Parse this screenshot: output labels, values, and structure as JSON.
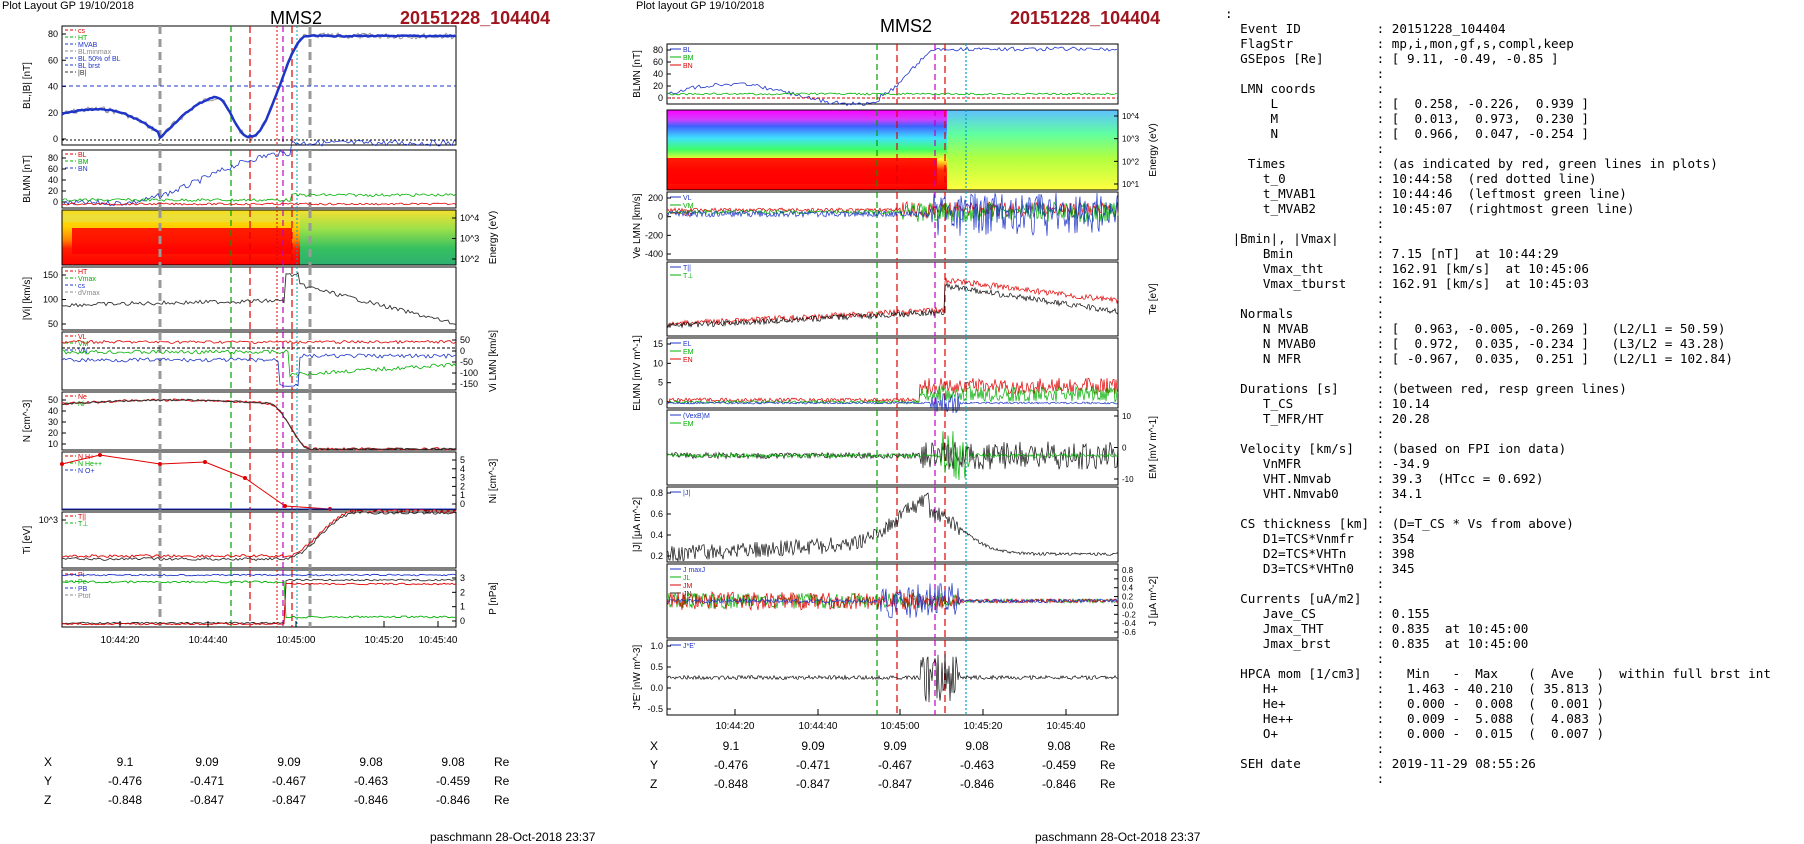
{
  "colors": {
    "event_id": "#a0141e",
    "bl": "#1f35c8",
    "red": "#e00000",
    "green": "#00b000",
    "magenta": "#c000c0",
    "cyan": "#00a0c0",
    "gray": "#888888"
  },
  "left": {
    "header": "Plot Layout GP 19/10/2018",
    "title": "MMS2",
    "event_id": "20151228_104404",
    "footer": "paschmann 28-Oct-2018 23:37",
    "time_ticks": [
      "10:44:20",
      "10:44:40",
      "10:45:00",
      "10:45:20",
      "10:45:40"
    ],
    "ephem": {
      "rows": [
        {
          "label": "X",
          "values": [
            "9.1",
            "9.09",
            "9.09",
            "9.08",
            "9.08"
          ],
          "unit": "Re"
        },
        {
          "label": "Y",
          "values": [
            "-0.476",
            "-0.471",
            "-0.467",
            "-0.463",
            "-0.459"
          ],
          "unit": "Re"
        },
        {
          "label": "Z",
          "values": [
            "-0.848",
            "-0.847",
            "-0.847",
            "-0.846",
            "-0.846"
          ],
          "unit": "Re"
        }
      ]
    },
    "panels": [
      {
        "ylabel": "BL,|B| [nT]",
        "ticks": [
          "80",
          "60",
          "40",
          "20",
          "0"
        ],
        "legend": [
          "cs",
          "HT",
          "MVAB",
          "BLminmax",
          "BL 50% of BL",
          "BL brst",
          "|B|"
        ]
      },
      {
        "ylabel": "BLMN [nT]",
        "ticks": [
          "80",
          "60",
          "40",
          "20",
          "0"
        ],
        "legend": [
          "BL",
          "BM",
          "BN"
        ]
      },
      {
        "ylabel": "Energy (eV)",
        "right_ticks": [
          "10^4",
          "10^3",
          "10^2"
        ]
      },
      {
        "ylabel": "|Vi| [km/s]",
        "ticks": [
          "150",
          "100",
          "50"
        ],
        "legend": [
          "HT",
          "Vmax",
          "cs",
          "dVmax"
        ]
      },
      {
        "ylabel": "Vi LMN [km/s]",
        "right_ticks": [
          "50",
          "0",
          "-50",
          "-100",
          "-150"
        ],
        "legend": [
          "VL",
          "VM",
          "VN"
        ]
      },
      {
        "ylabel": "N [cm^-3]",
        "ticks": [
          "50",
          "40",
          "30",
          "20",
          "10"
        ],
        "legend": [
          "Ne",
          "Ni"
        ]
      },
      {
        "ylabel": "Ni [cm^-3]",
        "right_ticks": [
          "5",
          "4",
          "3",
          "2",
          "1",
          "0"
        ],
        "legend": [
          "N H+",
          "N He++",
          "N O+"
        ]
      },
      {
        "ylabel": "Ti [eV]",
        "ticks": [
          "10^3"
        ],
        "legend": [
          "T||",
          "T⊥"
        ]
      },
      {
        "ylabel": "P [nPa]",
        "right_ticks": [
          "3",
          "2",
          "1",
          "0"
        ],
        "legend": [
          "Pi",
          "Pe",
          "PB",
          "Ptot"
        ]
      }
    ]
  },
  "right": {
    "header": "Plot layout GP 19/10/2018",
    "title": "MMS2",
    "event_id": "20151228_104404",
    "footer": "paschmann 28-Oct-2018 23:37",
    "time_ticks": [
      "10:44:20",
      "10:44:40",
      "10:45:00",
      "10:45:20",
      "10:45:40"
    ],
    "ephem": {
      "rows": [
        {
          "label": "X",
          "values": [
            "9.1",
            "9.09",
            "9.09",
            "9.08",
            "9.08"
          ],
          "unit": "Re"
        },
        {
          "label": "Y",
          "values": [
            "-0.476",
            "-0.471",
            "-0.467",
            "-0.463",
            "-0.459"
          ],
          "unit": "Re"
        },
        {
          "label": "Z",
          "values": [
            "-0.848",
            "-0.847",
            "-0.847",
            "-0.846",
            "-0.846"
          ],
          "unit": "Re"
        }
      ]
    },
    "panels": [
      {
        "ylabel": "BLMN [nT]",
        "ticks": [
          "80",
          "60",
          "40",
          "20",
          "0"
        ],
        "legend": [
          "BL",
          "BM",
          "BN"
        ]
      },
      {
        "ylabel": "Energy (eV)",
        "right_ticks": [
          "10^4",
          "10^3",
          "10^2",
          "10^1"
        ]
      },
      {
        "ylabel": "Ve LMN [km/s]",
        "ticks": [
          "200",
          "0",
          "-200",
          "-400"
        ],
        "legend": [
          "VL",
          "VM",
          "VN"
        ]
      },
      {
        "ylabel": "Te [eV]",
        "legend": [
          "T||",
          "T⊥"
        ]
      },
      {
        "ylabel": "ELMN [mV m^-1]",
        "ticks": [
          "15",
          "10",
          "5",
          "0"
        ],
        "legend": [
          "EL",
          "EM",
          "EN"
        ]
      },
      {
        "ylabel": "EM [mV m^-1]",
        "right_ticks": [
          "10",
          "0",
          "-10"
        ],
        "legend": [
          "(VexB)M",
          "EM"
        ]
      },
      {
        "ylabel": "|J| [μA m^-2]",
        "ticks": [
          "0.8",
          "0.6",
          "0.4",
          "0.2"
        ],
        "legend": [
          "|J|"
        ]
      },
      {
        "ylabel": "J [μA m^-2]",
        "right_ticks": [
          "0.8",
          "0.6",
          "0.4",
          "0.2",
          "0.0",
          "-0.2",
          "-0.4",
          "-0.6"
        ],
        "legend": [
          "J maxJ",
          "JL",
          "JM",
          "JN"
        ]
      },
      {
        "ylabel": "J*E' [nW m^-3]",
        "ticks": [
          "1.0",
          "0.5",
          "0.0",
          "-0.5"
        ],
        "legend": [
          "J*E'"
        ]
      }
    ]
  },
  "info_lines": [
    ":",
    "  Event ID          : 20151228_104404",
    "  FlagStr           : mp,i,mon,gf,s,compl,keep",
    "  GSEpos [Re]       : [ 9.11, -0.49, -0.85 ]",
    "                    :",
    "  LMN coords        :",
    "      L             : [  0.258, -0.226,  0.939 ]",
    "      M             : [  0.013,  0.973,  0.230 ]",
    "      N             : [  0.966,  0.047, -0.254 ]",
    "                    :",
    "   Times            : (as indicated by red, green lines in plots)",
    "     t_0            : 10:44:58  (red dotted line)",
    "     t_MVAB1        : 10:44:46  (leftmost green line)",
    "     t_MVAB2        : 10:45:07  (rightmost green line)",
    "                    :",
    " |Bmin|, |Vmax|     :",
    "     Bmin           : 7.15 [nT]  at 10:44:29",
    "     Vmax_tht       : 162.91 [km/s]  at 10:45:06",
    "     Vmax_tburst    : 162.91 [km/s]  at 10:45:03",
    "                    :",
    "  Normals           :",
    "     N MVAB         : [  0.963, -0.005, -0.269 ]   (L2/L1 = 50.59)",
    "     N MVAB0        : [  0.972,  0.035, -0.234 ]   (L3/L2 = 43.28)",
    "     N MFR          : [ -0.967,  0.035,  0.251 ]   (L2/L1 = 102.84)",
    "                    :",
    "  Durations [s]     : (between red, resp green lines)",
    "     T_CS           : 10.14",
    "     T_MFR/HT       : 20.28",
    "                    :",
    "  Velocity [km/s]   : (based on FPI ion data)",
    "     VnMFR          : -34.9",
    "     VHT.Nmvab      : 39.3  (HTcc = 0.692)",
    "     VHT.Nmvab0     : 34.1",
    "                    :",
    "  CS thickness [km] : (D=T_CS * Vs from above)",
    "     D1=TCS*Vnmfr   : 354",
    "     D2=TCS*VHTn    : 398",
    "     D3=TCS*VHTn0   : 345",
    "                    :",
    "  Currents [uA/m2]  :",
    "     Jave_CS        : 0.155",
    "     Jmax_THT       : 0.835  at 10:45:00",
    "     Jmax_brst      : 0.835  at 10:45:00",
    "                    :",
    "  HPCA mom [1/cm3]  :   Min   -  Max    (  Ave   )  within full brst int",
    "     H+             :   1.463 - 40.210  ( 35.813 )",
    "     He+            :   0.000 -  0.008  (  0.001 )",
    "     He++           :   0.009 -  5.088  (  4.083 )",
    "     O+             :   0.000 -  0.015  (  0.007 )",
    "                    :",
    "  SEH date          : 2019-11-29 08:55:26",
    "                    :"
  ]
}
